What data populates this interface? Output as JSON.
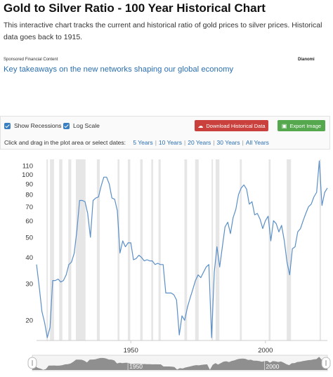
{
  "page": {
    "title": "Gold to Silver Ratio - 100 Year Historical Chart",
    "intro": "This interactive chart tracks the current and historical ratio of gold prices to silver prices. Historical data goes back to 1915."
  },
  "ad": {
    "sponsored_label": "Sponsored Financial Content",
    "brand": "Dianomi",
    "link_text": "Key takeaways on the new networks shaping our global economy"
  },
  "toolbar": {
    "show_recessions_label": "Show Recessions",
    "show_recessions_checked": true,
    "log_scale_label": "Log Scale",
    "log_scale_checked": true,
    "download_label": "Download Historical Data",
    "download_icon": "cloud-download-icon",
    "export_label": "Export Image",
    "export_icon": "image-icon",
    "dates_prompt": "Click and drag in the plot area or select dates:",
    "ranges": [
      "5 Years",
      "10 Years",
      "20 Years",
      "30 Years",
      "All Years"
    ]
  },
  "colors": {
    "line": "#5b8fc8",
    "recession": "#e6e6e6",
    "download_button": "#c9403d",
    "export_button": "#56a84e",
    "link": "#2a6fb0"
  },
  "chart_data": {
    "type": "line",
    "title": "",
    "xlabel": "",
    "ylabel": "",
    "yscale": "log",
    "xlim": [
      1915,
      2023
    ],
    "ylim": [
      16,
      118
    ],
    "y_ticks": [
      20,
      30,
      40,
      50,
      60,
      70,
      80,
      90,
      100,
      110
    ],
    "x_ticks": [
      1950,
      2000
    ],
    "navigator_ticks": [
      1950,
      2000
    ],
    "recessions": [
      [
        1918.7,
        1919.2
      ],
      [
        1920.0,
        1921.5
      ],
      [
        1923.4,
        1924.6
      ],
      [
        1926.8,
        1927.9
      ],
      [
        1929.6,
        1933.2
      ],
      [
        1937.4,
        1938.5
      ],
      [
        1945.1,
        1945.8
      ],
      [
        1948.9,
        1949.8
      ],
      [
        1953.5,
        1954.4
      ],
      [
        1957.6,
        1958.3
      ],
      [
        1960.3,
        1961.1
      ],
      [
        1969.9,
        1970.9
      ],
      [
        1973.9,
        1975.2
      ],
      [
        1980.0,
        1980.5
      ],
      [
        1981.5,
        1982.9
      ],
      [
        1990.5,
        1991.2
      ],
      [
        2001.2,
        2001.9
      ],
      [
        2007.9,
        2009.5
      ],
      [
        2020.1,
        2020.4
      ]
    ],
    "series": [
      {
        "values": [
          [
            1915,
            37
          ],
          [
            1916,
            29
          ],
          [
            1917,
            22
          ],
          [
            1918,
            19.5
          ],
          [
            1919,
            16.5
          ],
          [
            1920,
            18.5
          ],
          [
            1921,
            31
          ],
          [
            1922,
            31
          ],
          [
            1923,
            31.5
          ],
          [
            1924,
            30.5
          ],
          [
            1925,
            31
          ],
          [
            1926,
            33
          ],
          [
            1927,
            37
          ],
          [
            1928,
            38
          ],
          [
            1929,
            42
          ],
          [
            1930,
            54
          ],
          [
            1931,
            75
          ],
          [
            1932,
            75
          ],
          [
            1933,
            74
          ],
          [
            1934,
            65
          ],
          [
            1935,
            50
          ],
          [
            1936,
            75
          ],
          [
            1937,
            77
          ],
          [
            1938,
            78
          ],
          [
            1939,
            88
          ],
          [
            1940,
            97
          ],
          [
            1941,
            97
          ],
          [
            1942,
            90
          ],
          [
            1943,
            77
          ],
          [
            1944,
            76
          ],
          [
            1945,
            67
          ],
          [
            1946,
            42
          ],
          [
            1947,
            48
          ],
          [
            1948,
            45
          ],
          [
            1949,
            47
          ],
          [
            1950,
            47
          ],
          [
            1951,
            39
          ],
          [
            1952,
            39.5
          ],
          [
            1953,
            41
          ],
          [
            1954,
            40
          ],
          [
            1955,
            38.5
          ],
          [
            1956,
            39
          ],
          [
            1957,
            38.5
          ],
          [
            1958,
            38.5
          ],
          [
            1959,
            37
          ],
          [
            1960,
            37.5
          ],
          [
            1961,
            37
          ],
          [
            1962,
            37
          ],
          [
            1963,
            27
          ],
          [
            1964,
            27
          ],
          [
            1965,
            27
          ],
          [
            1966,
            26.5
          ],
          [
            1967,
            25
          ],
          [
            1968,
            17
          ],
          [
            1969,
            21
          ],
          [
            1970,
            20
          ],
          [
            1971,
            23
          ],
          [
            1972,
            25.5
          ],
          [
            1973,
            28
          ],
          [
            1974,
            31
          ],
          [
            1975,
            33
          ],
          [
            1976,
            32
          ],
          [
            1977,
            34
          ],
          [
            1978,
            36
          ],
          [
            1979,
            37
          ],
          [
            1980,
            16.5
          ],
          [
            1981,
            34
          ],
          [
            1982,
            45
          ],
          [
            1983,
            36
          ],
          [
            1984,
            45
          ],
          [
            1985,
            56
          ],
          [
            1986,
            59
          ],
          [
            1987,
            52
          ],
          [
            1988,
            62
          ],
          [
            1989,
            68
          ],
          [
            1990,
            80
          ],
          [
            1991,
            86
          ],
          [
            1992,
            89
          ],
          [
            1993,
            85
          ],
          [
            1994,
            72
          ],
          [
            1995,
            74
          ],
          [
            1996,
            64
          ],
          [
            1997,
            65
          ],
          [
            1998,
            61
          ],
          [
            1999,
            55
          ],
          [
            2000,
            60
          ],
          [
            2001,
            63
          ],
          [
            2002,
            48
          ],
          [
            2003,
            60
          ],
          [
            2004,
            58
          ],
          [
            2005,
            53
          ],
          [
            2006,
            57
          ],
          [
            2007,
            48
          ],
          [
            2008,
            38
          ],
          [
            2009,
            33
          ],
          [
            2010,
            44
          ],
          [
            2011,
            45
          ],
          [
            2012,
            53
          ],
          [
            2013,
            55
          ],
          [
            2014,
            60
          ],
          [
            2015,
            65
          ],
          [
            2016,
            70
          ],
          [
            2017,
            72
          ],
          [
            2018,
            78
          ],
          [
            2019,
            82
          ],
          [
            2020,
            116
          ],
          [
            2021,
            71
          ],
          [
            2022,
            82
          ],
          [
            2023,
            86
          ]
        ]
      }
    ]
  }
}
